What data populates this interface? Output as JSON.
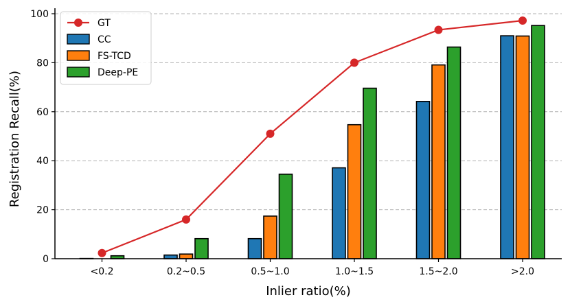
{
  "chart_data": {
    "type": "bar",
    "title": "",
    "xlabel": "Inlier ratio(%)",
    "ylabel": "Registration Recall(%)",
    "categories": [
      "<0.2",
      "0.2~0.5",
      "0.5~1.0",
      "1.0~1.5",
      "1.5~2.0",
      ">2.0"
    ],
    "ylim": [
      0,
      100
    ],
    "yticks": [
      0,
      20,
      40,
      60,
      80,
      100
    ],
    "grid": "y-dashed",
    "legend_position": "top-left",
    "line_series": {
      "name": "GT",
      "color": "#d62728",
      "values": [
        2.3,
        16.0,
        51.0,
        80.0,
        93.4,
        97.2
      ]
    },
    "series": [
      {
        "name": "CC",
        "color": "#1f77b4",
        "values": [
          0.1,
          1.5,
          8.2,
          37.1,
          64.2,
          91.0
        ]
      },
      {
        "name": "FS-TCD",
        "color": "#ff7f0e",
        "values": [
          0.0,
          1.9,
          17.4,
          54.7,
          79.1,
          90.9
        ]
      },
      {
        "name": "Deep-PE",
        "color": "#2ca02c",
        "values": [
          1.2,
          8.2,
          34.5,
          69.6,
          86.4,
          95.2
        ]
      }
    ]
  }
}
